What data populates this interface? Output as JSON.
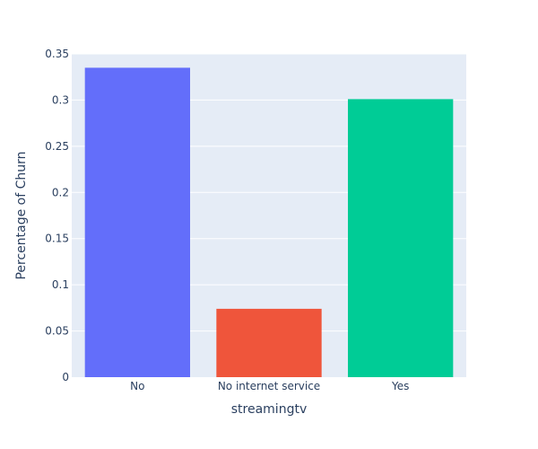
{
  "chart_data": {
    "type": "bar",
    "title": "",
    "xlabel": "streamingtv",
    "ylabel": "Percentage of Churn",
    "categories": [
      "No",
      "No internet service",
      "Yes"
    ],
    "values": [
      0.335,
      0.074,
      0.301
    ],
    "colors": [
      "#636efa",
      "#ef553b",
      "#00cc96"
    ],
    "ylim": [
      0,
      0.35
    ],
    "yticks": [
      0,
      0.05,
      0.1,
      0.15,
      0.2,
      0.25,
      0.3,
      0.35
    ],
    "ytick_labels": [
      "0",
      "0.05",
      "0.1",
      "0.15",
      "0.2",
      "0.25",
      "0.3",
      "0.35"
    ],
    "grid": true,
    "legend": "none",
    "plot_bgcolor": "#e5ecf6"
  }
}
